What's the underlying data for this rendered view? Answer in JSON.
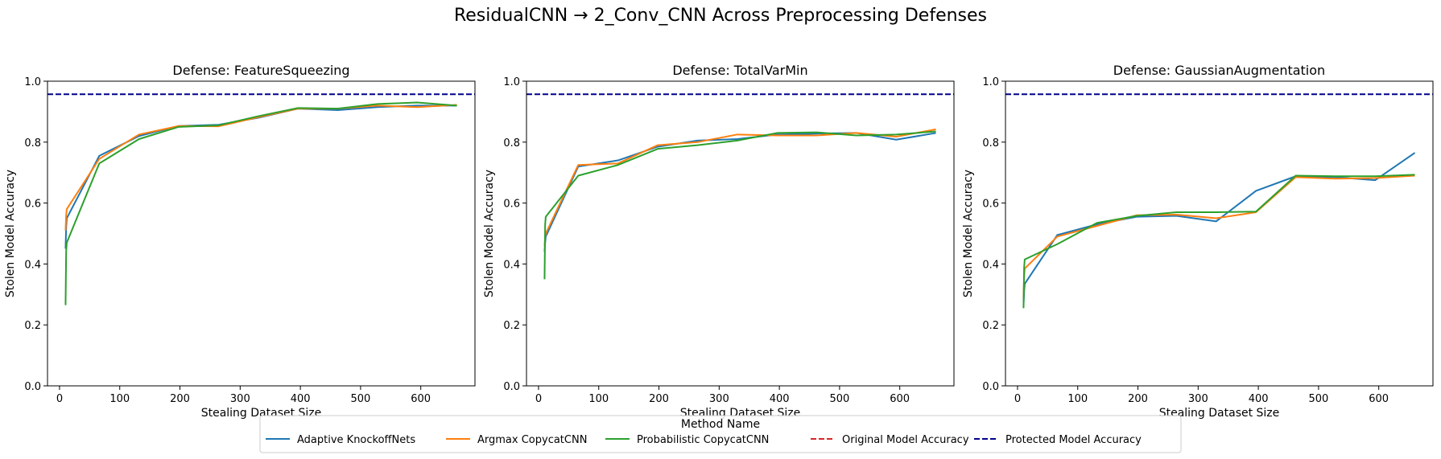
{
  "figure": {
    "title": "ResidualCNN → 2_Conv_CNN Across Preprocessing Defenses"
  },
  "legend": {
    "title": "Method Name",
    "placement": "bottom-center",
    "entries": [
      {
        "label": "Adaptive KnockoffNets",
        "color": "#1f77b4",
        "style": "solid"
      },
      {
        "label": "Argmax CopycatCNN",
        "color": "#ff7f0e",
        "style": "solid"
      },
      {
        "label": "Probabilistic CopycatCNN",
        "color": "#2ca02c",
        "style": "solid"
      },
      {
        "label": "Original Model Accuracy",
        "color": "#d62728",
        "style": "dashed"
      },
      {
        "label": "Protected Model Accuracy",
        "color": "#00008b",
        "style": "dashed"
      }
    ]
  },
  "chart_data": [
    {
      "type": "line",
      "title": "Defense: FeatureSqueezing",
      "xlabel": "Stealing Dataset Size",
      "ylabel": "Stolen Model Accuracy",
      "xlim": [
        -20,
        690
      ],
      "ylim": [
        0,
        1.0
      ],
      "xticks": [
        0,
        100,
        200,
        300,
        400,
        500,
        600
      ],
      "yticks": [
        0.0,
        0.2,
        0.4,
        0.6,
        0.8,
        1.0
      ],
      "grid": false,
      "hlines": [
        {
          "name": "Protected Model Accuracy",
          "y": 0.957,
          "color": "#00008b"
        }
      ],
      "x": [
        10,
        11,
        12,
        66,
        132,
        198,
        264,
        330,
        396,
        462,
        528,
        594,
        660
      ],
      "series": [
        {
          "name": "Adaptive KnockoffNets",
          "color": "#1f77b4",
          "values": [
            0.45,
            0.52,
            0.55,
            0.755,
            0.82,
            0.853,
            0.857,
            0.88,
            0.91,
            0.905,
            0.915,
            0.92,
            0.92
          ]
        },
        {
          "name": "Argmax CopycatCNN",
          "color": "#ff7f0e",
          "values": [
            0.51,
            0.56,
            0.58,
            0.745,
            0.825,
            0.853,
            0.852,
            0.882,
            0.91,
            0.91,
            0.92,
            0.915,
            0.922
          ]
        },
        {
          "name": "Probabilistic CopycatCNN",
          "color": "#2ca02c",
          "values": [
            0.265,
            0.44,
            0.47,
            0.73,
            0.81,
            0.85,
            0.855,
            0.885,
            0.912,
            0.91,
            0.925,
            0.93,
            0.92
          ]
        }
      ]
    },
    {
      "type": "line",
      "title": "Defense: TotalVarMin",
      "xlabel": "Stealing Dataset Size",
      "ylabel": "Stolen Model Accuracy",
      "xlim": [
        -20,
        690
      ],
      "ylim": [
        0,
        1.0
      ],
      "xticks": [
        0,
        100,
        200,
        300,
        400,
        500,
        600
      ],
      "yticks": [
        0.0,
        0.2,
        0.4,
        0.6,
        0.8,
        1.0
      ],
      "grid": false,
      "hlines": [
        {
          "name": "Protected Model Accuracy",
          "y": 0.957,
          "color": "#00008b"
        }
      ],
      "x": [
        10,
        11,
        12,
        66,
        132,
        198,
        264,
        330,
        396,
        462,
        528,
        594,
        660
      ],
      "series": [
        {
          "name": "Adaptive KnockoffNets",
          "color": "#1f77b4",
          "values": [
            0.44,
            0.47,
            0.49,
            0.72,
            0.74,
            0.785,
            0.805,
            0.81,
            0.825,
            0.828,
            0.83,
            0.808,
            0.83
          ]
        },
        {
          "name": "Argmax CopycatCNN",
          "color": "#ff7f0e",
          "values": [
            0.46,
            0.49,
            0.5,
            0.725,
            0.73,
            0.79,
            0.8,
            0.825,
            0.822,
            0.822,
            0.83,
            0.818,
            0.842
          ]
        },
        {
          "name": "Probabilistic CopycatCNN",
          "color": "#2ca02c",
          "values": [
            0.35,
            0.53,
            0.555,
            0.69,
            0.725,
            0.778,
            0.79,
            0.805,
            0.83,
            0.832,
            0.822,
            0.825,
            0.835
          ]
        }
      ]
    },
    {
      "type": "line",
      "title": "Defense: GaussianAugmentation",
      "xlabel": "Stealing Dataset Size",
      "ylabel": "Stolen Model Accuracy",
      "xlim": [
        -20,
        690
      ],
      "ylim": [
        0,
        1.0
      ],
      "xticks": [
        0,
        100,
        200,
        300,
        400,
        500,
        600
      ],
      "yticks": [
        0.0,
        0.2,
        0.4,
        0.6,
        0.8,
        1.0
      ],
      "grid": false,
      "hlines": [
        {
          "name": "Protected Model Accuracy",
          "y": 0.957,
          "color": "#00008b"
        }
      ],
      "x": [
        10,
        11,
        12,
        66,
        132,
        198,
        264,
        330,
        396,
        462,
        528,
        594,
        660
      ],
      "series": [
        {
          "name": "Adaptive KnockoffNets",
          "color": "#1f77b4",
          "values": [
            0.265,
            0.31,
            0.335,
            0.495,
            0.53,
            0.555,
            0.558,
            0.54,
            0.64,
            0.688,
            0.685,
            0.675,
            0.765
          ]
        },
        {
          "name": "Argmax CopycatCNN",
          "color": "#ff7f0e",
          "values": [
            0.29,
            0.36,
            0.385,
            0.49,
            0.525,
            0.56,
            0.562,
            0.55,
            0.57,
            0.685,
            0.68,
            0.682,
            0.69
          ]
        },
        {
          "name": "Probabilistic CopycatCNN",
          "color": "#2ca02c",
          "values": [
            0.255,
            0.39,
            0.415,
            0.465,
            0.535,
            0.558,
            0.57,
            0.57,
            0.572,
            0.69,
            0.688,
            0.688,
            0.693
          ]
        }
      ]
    }
  ]
}
